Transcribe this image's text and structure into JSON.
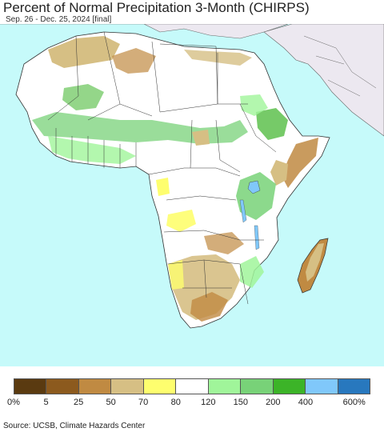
{
  "title": "Percent of Normal Precipitation 3-Month (CHIRPS)",
  "subtitle": "Sep. 26 - Dec. 25, 2024 [final]",
  "source": "Source: UCSB, Climate Hazards Center",
  "legend": {
    "colors": [
      "#5a3a10",
      "#8c5a1e",
      "#c08a42",
      "#d6bf84",
      "#fefe6e",
      "#ffffff",
      "#a0f59a",
      "#78d278",
      "#3cb428",
      "#80c8fa",
      "#2878be"
    ],
    "labels": [
      "0%",
      "5",
      "25",
      "50",
      "70",
      "80",
      "120",
      "150",
      "200",
      "400",
      "600%"
    ]
  },
  "map_colors": {
    "ocean": "#c6fafa",
    "land_outside": "#ece8f0",
    "africa_base": "#ffffff",
    "border": "#333333"
  }
}
